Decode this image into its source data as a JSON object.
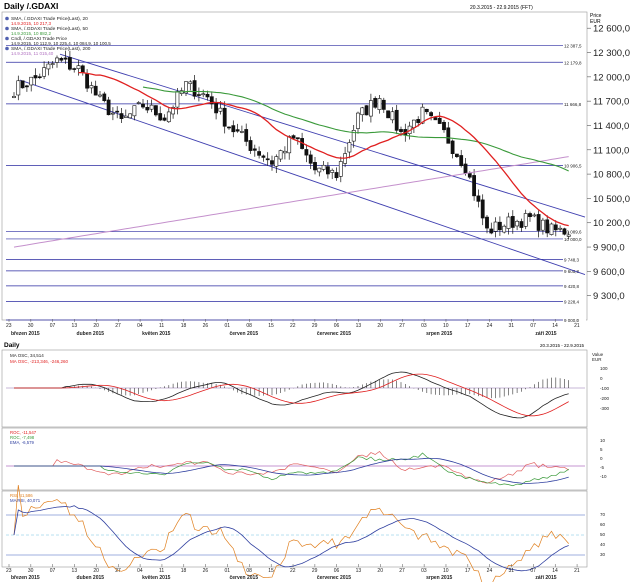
{
  "header": {
    "title": "Daily /.GDAXI",
    "date_range": "20.3.2015 - 22.9.2015 (FFT)",
    "price_unit_label": "Price",
    "price_unit_currency": "EUR"
  },
  "price_legend": [
    {
      "name": "SMA, /.GDAXI Trade Price(Last), 20",
      "value": "14.9.2015, 10 217,3",
      "color": "#e02020"
    },
    {
      "name": "SMA, /.GDAXI Trade Price(Last), 50",
      "value": "14.9.2015, 10 882,2",
      "color": "#3a9a3a"
    },
    {
      "name": "Cndl, /.GDAXI Trade Price",
      "value": "14.9.2015, 10 112,9, 10 225,4, 10 084,9, 10 100,5",
      "color": "#222222"
    },
    {
      "name": "SMA, /.GDAXI Trade Price(Last), 200",
      "value": "14.9.2015, 11 015,40",
      "color": "#b070c0"
    }
  ],
  "macd_header": {
    "date_range": "20.3.2015 - 22.9.2015",
    "value_label": "Value",
    "value_unit": "EUR"
  },
  "macd_legend": [
    {
      "name": "MA OSC, 34,514",
      "color": "#222222"
    },
    {
      "name": "MA OSC, -213,346, -246,260",
      "color": "#e02020"
    }
  ],
  "roc_legend": [
    {
      "name": "ROC, -11,547",
      "color": "#e02020"
    },
    {
      "name": "ROC, -7,498",
      "color": "#3a9a3a"
    },
    {
      "name": "EMA, -6,579",
      "color": "#3040a0"
    }
  ],
  "rsi_legend": [
    {
      "name": "RSI, 41,586",
      "color": "#e08020"
    },
    {
      "name": "MA RSI, 40,071",
      "color": "#3040a0"
    }
  ],
  "level_labels": [
    "12 387,5",
    "12 179,8",
    "11 666,8",
    "10 906,5",
    "10 089,6",
    "10 000,0",
    "9 748,3",
    "9 605,8",
    "9 420,8",
    "9 228,4",
    "9 000,0"
  ],
  "x_days": [
    "23",
    "30",
    "07",
    "13",
    "20",
    "27",
    "04",
    "11",
    "18",
    "26",
    "01",
    "08",
    "15",
    "22",
    "29",
    "06",
    "13",
    "20",
    "27",
    "03",
    "10",
    "17",
    "24",
    "31",
    "07",
    "14",
    "21"
  ],
  "x_months": [
    "březen 2015",
    "duben 2015",
    "květen 2015",
    "červen 2015",
    "červenec 2015",
    "srpen 2015",
    "září 2015"
  ],
  "chart_data": {
    "type": "candlestick",
    "title": "Daily /.GDAXI",
    "y_ticks": [
      "12 600,0",
      "12 300,0",
      "12 000,0",
      "11 700,0",
      "11 400,0",
      "11 100,0",
      "10 800,0",
      "10 500,0",
      "10 200,0",
      "9 900,0",
      "9 600,0",
      "9 300,0"
    ],
    "ylim": [
      9000,
      12800
    ],
    "dates": [
      "23.3",
      "30.3",
      "7.4",
      "13.4",
      "20.4",
      "27.4",
      "4.5",
      "11.5",
      "18.5",
      "26.5",
      "1.6",
      "8.6",
      "15.6",
      "22.6",
      "29.6",
      "6.7",
      "13.7",
      "20.7",
      "27.7",
      "3.8",
      "10.8",
      "17.8",
      "24.8",
      "31.8",
      "7.9",
      "14.9"
    ],
    "close_weekly": [
      11850,
      11980,
      12200,
      12100,
      11700,
      11450,
      11650,
      11500,
      11900,
      11750,
      11400,
      11150,
      10950,
      11250,
      10850,
      10800,
      11500,
      11750,
      11300,
      11550,
      11300,
      10900,
      10100,
      10200,
      10250,
      10100
    ],
    "sma20_last": 10217.3,
    "sma50_last": 10882.2,
    "sma200_last": 11015.4,
    "macd_axis": [
      "100",
      "0",
      "-100",
      "-200",
      "-300"
    ],
    "roc_axis": [
      "10",
      "5",
      "0",
      "-5",
      "-10"
    ],
    "rsi_axis": [
      "70",
      "60",
      "50",
      "40",
      "30"
    ]
  }
}
